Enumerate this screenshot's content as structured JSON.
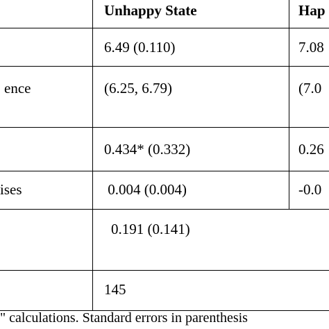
{
  "table": {
    "header": {
      "col1": "Unhappy State",
      "col2": "Hap"
    },
    "rows": [
      {
        "label": "",
        "col1": "6.49 (0.110)",
        "col2": "7.08"
      },
      {
        "label": "ence",
        "col1": "(6.25, 6.79)",
        "col2": "(7.0"
      },
      {
        "label": "",
        "col1": "0.434* (0.332)",
        "col2": "0.26"
      },
      {
        "label": "ises",
        "col1": " 0.004 (0.004)",
        "col2": "-0.0"
      },
      {
        "label": "",
        "col1": "0.191 (0.141)",
        "col2": ""
      },
      {
        "label": "",
        "col1": "145",
        "col2": ""
      }
    ]
  },
  "footnote": "\" calculations. Standard errors in parenthesis"
}
